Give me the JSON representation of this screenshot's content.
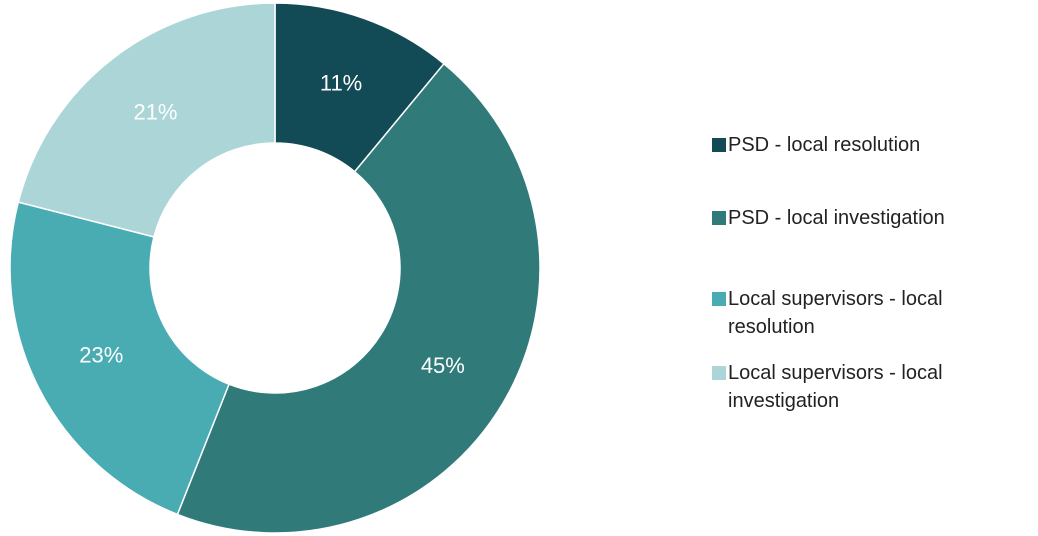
{
  "chart_data": {
    "type": "donut",
    "categories": [
      "PSD - local resolution",
      "PSD - local investigation",
      "Local supervisors - local resolution",
      "Local supervisors - local investigation"
    ],
    "values": [
      11,
      45,
      23,
      21
    ],
    "value_labels": [
      "11%",
      "45%",
      "23%",
      "21%"
    ],
    "colors": [
      "#124a55",
      "#317a7a",
      "#4aacb3",
      "#acd5d8"
    ],
    "legend": "right"
  }
}
